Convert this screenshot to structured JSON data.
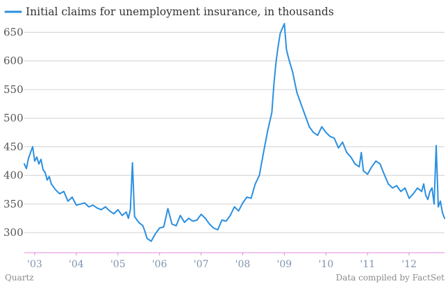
{
  "chart_data": {
    "type": "line",
    "title": "",
    "xlabel": "",
    "ylabel": "",
    "ylim": [
      265,
      670
    ],
    "xlim": [
      2002.75,
      2012.85
    ],
    "grid": true,
    "legend_position": "top-left",
    "y_ticks": [
      300,
      350,
      400,
      450,
      500,
      550,
      600,
      650
    ],
    "x_ticks": [
      {
        "x": 2003,
        "label": "'03"
      },
      {
        "x": 2004,
        "label": "'04"
      },
      {
        "x": 2005,
        "label": "'05"
      },
      {
        "x": 2006,
        "label": "'06"
      },
      {
        "x": 2007,
        "label": "'07"
      },
      {
        "x": 2008,
        "label": "'08"
      },
      {
        "x": 2009,
        "label": "'09"
      },
      {
        "x": 2010,
        "label": "'10"
      },
      {
        "x": 2011,
        "label": "'11"
      },
      {
        "x": 2012,
        "label": "'12"
      }
    ],
    "series": [
      {
        "name": "Initial claims for unemployment insurance, in thousands",
        "color": "#2a8fe0",
        "x": [
          2002.75,
          2002.8,
          2002.85,
          2002.9,
          2002.95,
          2003.0,
          2003.05,
          2003.1,
          2003.15,
          2003.2,
          2003.25,
          2003.3,
          2003.35,
          2003.4,
          2003.5,
          2003.6,
          2003.7,
          2003.8,
          2003.9,
          2004.0,
          2004.1,
          2004.2,
          2004.3,
          2004.4,
          2004.5,
          2004.6,
          2004.7,
          2004.8,
          2004.9,
          2005.0,
          2005.1,
          2005.2,
          2005.25,
          2005.3,
          2005.35,
          2005.4,
          2005.5,
          2005.6,
          2005.65,
          2005.7,
          2005.8,
          2005.9,
          2006.0,
          2006.1,
          2006.2,
          2006.3,
          2006.4,
          2006.5,
          2006.6,
          2006.7,
          2006.8,
          2006.9,
          2007.0,
          2007.1,
          2007.2,
          2007.3,
          2007.4,
          2007.5,
          2007.6,
          2007.7,
          2007.8,
          2007.9,
          2008.0,
          2008.1,
          2008.2,
          2008.3,
          2008.4,
          2008.5,
          2008.6,
          2008.7,
          2008.75,
          2008.8,
          2008.85,
          2008.9,
          2009.0,
          2009.05,
          2009.1,
          2009.2,
          2009.3,
          2009.4,
          2009.5,
          2009.6,
          2009.7,
          2009.8,
          2009.9,
          2010.0,
          2010.1,
          2010.2,
          2010.3,
          2010.4,
          2010.5,
          2010.6,
          2010.7,
          2010.8,
          2010.85,
          2010.9,
          2011.0,
          2011.1,
          2011.2,
          2011.3,
          2011.4,
          2011.5,
          2011.6,
          2011.7,
          2011.8,
          2011.9,
          2012.0,
          2012.1,
          2012.2,
          2012.3,
          2012.35,
          2012.4,
          2012.45,
          2012.5,
          2012.55,
          2012.6,
          2012.65,
          2012.7,
          2012.75,
          2012.8,
          2012.85
        ],
        "y": [
          420,
          412,
          430,
          440,
          450,
          425,
          432,
          420,
          428,
          410,
          405,
          392,
          398,
          385,
          375,
          368,
          372,
          355,
          362,
          348,
          350,
          352,
          345,
          348,
          343,
          340,
          345,
          338,
          333,
          340,
          330,
          336,
          325,
          340,
          422,
          328,
          318,
          312,
          302,
          290,
          285,
          298,
          308,
          310,
          342,
          315,
          312,
          330,
          318,
          325,
          320,
          322,
          332,
          325,
          315,
          308,
          305,
          322,
          320,
          330,
          345,
          338,
          352,
          362,
          360,
          385,
          400,
          440,
          478,
          510,
          560,
          598,
          625,
          648,
          665,
          620,
          605,
          580,
          545,
          525,
          505,
          485,
          475,
          470,
          485,
          475,
          468,
          465,
          448,
          458,
          440,
          432,
          420,
          415,
          440,
          408,
          402,
          415,
          425,
          420,
          402,
          385,
          378,
          382,
          372,
          378,
          360,
          368,
          378,
          372,
          385,
          365,
          358,
          372,
          378,
          350,
          452,
          345,
          355,
          335,
          325
        ]
      }
    ]
  },
  "legend": {
    "label": "Initial claims for unemployment insurance, in thousands",
    "color": "#2a8fe0"
  },
  "footer": {
    "left": "Quartz",
    "right": "Data compiled by FactSet"
  },
  "colors": {
    "line": "#2a8fe0",
    "grid": "#d0d0d0",
    "baseline": "#e08ae0"
  }
}
